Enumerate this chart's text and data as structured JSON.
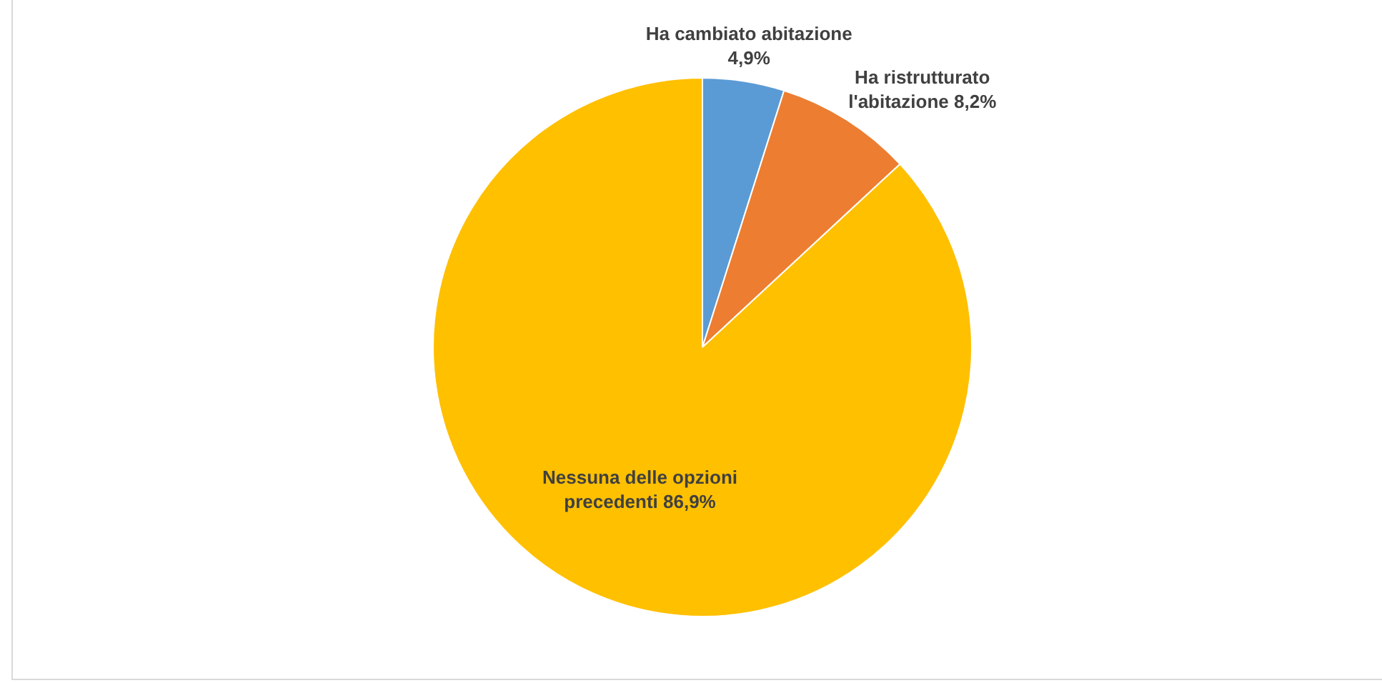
{
  "chart_data": {
    "type": "pie",
    "categories": [
      "Ha cambiato abitazione",
      "Ha ristrutturato l'abitazione",
      "Nessuna delle opzioni precedenti"
    ],
    "values": [
      4.9,
      8.2,
      86.9
    ],
    "colors": [
      "#5b9bd5",
      "#ed7d31",
      "#ffc000"
    ],
    "value_labels": [
      "4,9%",
      "8,2%",
      "86,9%"
    ],
    "legend": false
  }
}
